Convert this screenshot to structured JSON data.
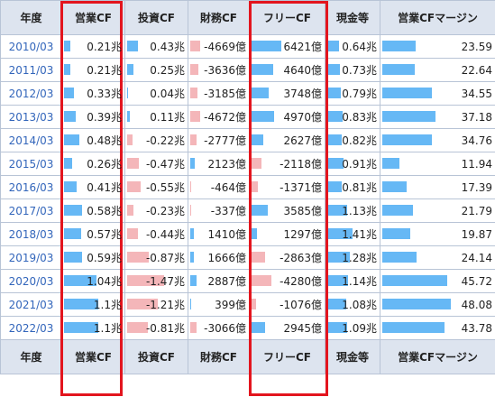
{
  "table": {
    "headers": [
      "年度",
      "営業CF",
      "投資CF",
      "財務CF",
      "フリーCF",
      "現金等",
      "営業CFマージン"
    ],
    "footers": [
      "年度",
      "営業CF",
      "投資CF",
      "財務CF",
      "フリーCF",
      "現金等",
      "営業CFマージン"
    ],
    "rows": [
      {
        "year": "2010/03",
        "op": "0.21兆",
        "inv": "0.43兆",
        "fin": "-4669億",
        "free": "6421億",
        "cash": "0.64兆",
        "margin": "23.59",
        "bars": {
          "op": 0.17,
          "inv": 0.29,
          "fin": -0.28,
          "free": 0.66,
          "cash": 0.35,
          "margin": 0.49
        }
      },
      {
        "year": "2011/03",
        "op": "0.21兆",
        "inv": "0.25兆",
        "fin": "-3636億",
        "free": "4640億",
        "cash": "0.73兆",
        "margin": "22.64",
        "bars": {
          "op": 0.17,
          "inv": 0.17,
          "fin": -0.22,
          "free": 0.48,
          "cash": 0.4,
          "margin": 0.47
        }
      },
      {
        "year": "2012/03",
        "op": "0.33兆",
        "inv": "0.04兆",
        "fin": "-3185億",
        "free": "3748億",
        "cash": "0.79兆",
        "margin": "34.55",
        "bars": {
          "op": 0.27,
          "inv": 0.03,
          "fin": -0.19,
          "free": 0.39,
          "cash": 0.43,
          "margin": 0.72
        }
      },
      {
        "year": "2013/03",
        "op": "0.39兆",
        "inv": "0.11兆",
        "fin": "-4672億",
        "free": "4970億",
        "cash": "0.83兆",
        "margin": "37.18",
        "bars": {
          "op": 0.32,
          "inv": 0.07,
          "fin": -0.28,
          "free": 0.51,
          "cash": 0.46,
          "margin": 0.77
        }
      },
      {
        "year": "2014/03",
        "op": "0.48兆",
        "inv": "-0.22兆",
        "fin": "-2777億",
        "free": "2627億",
        "cash": "0.82兆",
        "margin": "34.76",
        "bars": {
          "op": 0.4,
          "inv": -0.15,
          "fin": -0.17,
          "free": 0.27,
          "cash": 0.45,
          "margin": 0.72
        }
      },
      {
        "year": "2015/03",
        "op": "0.26兆",
        "inv": "-0.47兆",
        "fin": "2123億",
        "free": "-2118億",
        "cash": "0.91兆",
        "margin": "11.94",
        "bars": {
          "op": 0.21,
          "inv": -0.32,
          "fin": 0.13,
          "free": -0.22,
          "cash": 0.5,
          "margin": 0.25
        }
      },
      {
        "year": "2016/03",
        "op": "0.41兆",
        "inv": "-0.55兆",
        "fin": "-464億",
        "free": "-1371億",
        "cash": "0.81兆",
        "margin": "17.39",
        "bars": {
          "op": 0.34,
          "inv": -0.37,
          "fin": -0.03,
          "free": -0.14,
          "cash": 0.45,
          "margin": 0.36
        }
      },
      {
        "year": "2017/03",
        "op": "0.58兆",
        "inv": "-0.23兆",
        "fin": "-337億",
        "free": "3585億",
        "cash": "1.13兆",
        "margin": "21.79",
        "bars": {
          "op": 0.48,
          "inv": -0.16,
          "fin": -0.02,
          "free": 0.37,
          "cash": 0.62,
          "margin": 0.45
        }
      },
      {
        "year": "2018/03",
        "op": "0.57兆",
        "inv": "-0.44兆",
        "fin": "1410億",
        "free": "1297億",
        "cash": "1.41兆",
        "margin": "19.87",
        "bars": {
          "op": 0.47,
          "inv": -0.3,
          "fin": 0.09,
          "free": 0.13,
          "cash": 0.78,
          "margin": 0.41
        }
      },
      {
        "year": "2019/03",
        "op": "0.59兆",
        "inv": "-0.87兆",
        "fin": "1666億",
        "free": "-2863億",
        "cash": "1.28兆",
        "margin": "24.14",
        "bars": {
          "op": 0.49,
          "inv": -0.59,
          "fin": 0.1,
          "free": -0.3,
          "cash": 0.7,
          "margin": 0.5
        }
      },
      {
        "year": "2020/03",
        "op": "1.04兆",
        "inv": "-1.47兆",
        "fin": "2887億",
        "free": "-4280億",
        "cash": "1.14兆",
        "margin": "45.72",
        "bars": {
          "op": 0.86,
          "inv": -1.0,
          "fin": 0.18,
          "free": -0.44,
          "cash": 0.63,
          "margin": 0.95
        }
      },
      {
        "year": "2021/03",
        "op": "1.1兆",
        "inv": "-1.21兆",
        "fin": "399億",
        "free": "-1076億",
        "cash": "1.08兆",
        "margin": "48.08",
        "bars": {
          "op": 0.91,
          "inv": -0.82,
          "fin": 0.02,
          "free": -0.11,
          "cash": 0.59,
          "margin": 1.0
        }
      },
      {
        "year": "2022/03",
        "op": "1.1兆",
        "inv": "-0.81兆",
        "fin": "-3066億",
        "free": "2945億",
        "cash": "1.09兆",
        "margin": "43.78",
        "bars": {
          "op": 0.91,
          "inv": -0.55,
          "fin": -0.18,
          "free": 0.3,
          "cash": 0.6,
          "margin": 0.91
        }
      }
    ]
  },
  "colors": {
    "positive_bar": "#66b8f5",
    "negative_bar": "#f4b6b9",
    "highlight": "#e3151e",
    "year_link": "#3366bb"
  }
}
